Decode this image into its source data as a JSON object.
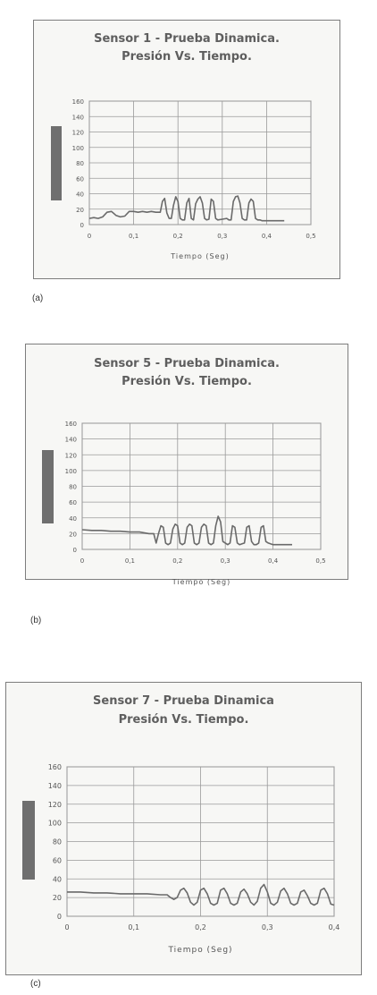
{
  "captions": [
    "(a)",
    "(b)",
    "(c)"
  ],
  "chart_data": [
    {
      "type": "line",
      "title": "Sensor 1 - Prueba Dinamica.",
      "subtitle": "Presión Vs. Tiempo.",
      "xlabel": "Tiempo (Seg)",
      "ylabel": "",
      "xlim": [
        0,
        0.5
      ],
      "ylim": [
        0,
        160
      ],
      "xticks": [
        "0",
        "0,1",
        "0,2",
        "0,3",
        "0,4",
        "0,5"
      ],
      "yticks": [
        "0",
        "20",
        "40",
        "60",
        "80",
        "100",
        "120",
        "140",
        "160"
      ],
      "grid": true,
      "legend_marker_color": "#6f6f6f",
      "line_color": "#6a6a6a",
      "series": [
        {
          "x": [
            0,
            0.01,
            0.02,
            0.03,
            0.04,
            0.05,
            0.06,
            0.07,
            0.08,
            0.09,
            0.1,
            0.11,
            0.12,
            0.13,
            0.14,
            0.15,
            0.16,
            0.165,
            0.17,
            0.175,
            0.18,
            0.185,
            0.19,
            0.195,
            0.2,
            0.205,
            0.21,
            0.215,
            0.22,
            0.225,
            0.23,
            0.235,
            0.24,
            0.245,
            0.25,
            0.255,
            0.26,
            0.265,
            0.27,
            0.275,
            0.28,
            0.285,
            0.29,
            0.3,
            0.31,
            0.315,
            0.32,
            0.325,
            0.33,
            0.335,
            0.34,
            0.345,
            0.35,
            0.355,
            0.36,
            0.365,
            0.37,
            0.375,
            0.38,
            0.385,
            0.39,
            0.4,
            0.41,
            0.42,
            0.43,
            0.44
          ],
          "y": [
            8,
            9,
            8,
            10,
            16,
            17,
            12,
            10,
            11,
            17,
            17,
            16,
            17,
            16,
            17,
            16,
            16,
            30,
            34,
            15,
            8,
            8,
            25,
            36,
            30,
            8,
            6,
            6,
            28,
            34,
            8,
            6,
            27,
            33,
            36,
            28,
            8,
            6,
            7,
            33,
            30,
            8,
            6,
            7,
            8,
            6,
            6,
            30,
            36,
            37,
            28,
            8,
            6,
            6,
            28,
            33,
            30,
            8,
            6,
            6,
            5,
            5,
            5,
            5,
            5,
            5
          ]
        }
      ]
    },
    {
      "type": "line",
      "title": "Sensor 5 - Prueba Dinamica.",
      "subtitle": "Presión Vs. Tiempo.",
      "xlabel": "Tiempo (Seg)",
      "ylabel": "",
      "xlim": [
        0,
        0.5
      ],
      "ylim": [
        0,
        160
      ],
      "xticks": [
        "0",
        "0,1",
        "0,2",
        "0,3",
        "0,4",
        "0,5"
      ],
      "yticks": [
        "0",
        "20",
        "40",
        "60",
        "80",
        "100",
        "120",
        "140",
        "160"
      ],
      "grid": true,
      "legend_marker_color": "#6f6f6f",
      "line_color": "#6a6a6a",
      "series": [
        {
          "x": [
            0,
            0.02,
            0.04,
            0.06,
            0.08,
            0.1,
            0.12,
            0.14,
            0.15,
            0.155,
            0.16,
            0.165,
            0.17,
            0.175,
            0.18,
            0.185,
            0.19,
            0.195,
            0.2,
            0.205,
            0.21,
            0.215,
            0.22,
            0.225,
            0.23,
            0.235,
            0.24,
            0.245,
            0.25,
            0.255,
            0.26,
            0.265,
            0.27,
            0.275,
            0.28,
            0.285,
            0.29,
            0.295,
            0.3,
            0.305,
            0.31,
            0.315,
            0.32,
            0.325,
            0.33,
            0.335,
            0.34,
            0.345,
            0.35,
            0.355,
            0.36,
            0.365,
            0.37,
            0.375,
            0.38,
            0.385,
            0.39,
            0.4,
            0.42,
            0.44
          ],
          "y": [
            25,
            24,
            24,
            23,
            23,
            22,
            22,
            20,
            20,
            8,
            20,
            30,
            28,
            8,
            6,
            8,
            26,
            32,
            30,
            8,
            6,
            8,
            28,
            32,
            30,
            8,
            6,
            8,
            28,
            32,
            30,
            8,
            6,
            8,
            30,
            42,
            35,
            10,
            8,
            6,
            8,
            30,
            28,
            8,
            6,
            7,
            8,
            28,
            30,
            10,
            6,
            6,
            8,
            28,
            30,
            10,
            8,
            6,
            6,
            6
          ]
        }
      ]
    },
    {
      "type": "line",
      "title": "Sensor 7 - Prueba Dinamica",
      "subtitle": "Presión Vs. Tiempo.",
      "xlabel": "Tiempo (Seg)",
      "ylabel": "",
      "xlim": [
        0,
        0.4
      ],
      "ylim": [
        0,
        160
      ],
      "xticks": [
        "0",
        "0,1",
        "0,2",
        "0,3",
        "0,4"
      ],
      "yticks": [
        "0",
        "20",
        "40",
        "60",
        "80",
        "100",
        "120",
        "140",
        "160"
      ],
      "grid": true,
      "legend_marker_color": "#6f6f6f",
      "line_color": "#6a6a6a",
      "series": [
        {
          "x": [
            0,
            0.02,
            0.04,
            0.06,
            0.08,
            0.1,
            0.12,
            0.14,
            0.15,
            0.155,
            0.16,
            0.165,
            0.17,
            0.175,
            0.18,
            0.185,
            0.19,
            0.195,
            0.2,
            0.205,
            0.21,
            0.215,
            0.22,
            0.225,
            0.23,
            0.235,
            0.24,
            0.245,
            0.25,
            0.255,
            0.26,
            0.265,
            0.27,
            0.275,
            0.28,
            0.285,
            0.29,
            0.295,
            0.3,
            0.305,
            0.31,
            0.315,
            0.32,
            0.325,
            0.33,
            0.335,
            0.34,
            0.345,
            0.35,
            0.355,
            0.36,
            0.365,
            0.37,
            0.375,
            0.38,
            0.385,
            0.39,
            0.395,
            0.4
          ],
          "y": [
            26,
            26,
            25,
            25,
            24,
            24,
            24,
            23,
            23,
            20,
            18,
            20,
            28,
            30,
            25,
            15,
            12,
            15,
            28,
            30,
            24,
            14,
            12,
            14,
            28,
            30,
            24,
            14,
            12,
            14,
            26,
            29,
            24,
            15,
            12,
            16,
            30,
            34,
            26,
            14,
            12,
            15,
            27,
            30,
            24,
            14,
            12,
            14,
            26,
            28,
            22,
            14,
            12,
            14,
            28,
            30,
            24,
            13,
            12
          ]
        }
      ]
    }
  ]
}
